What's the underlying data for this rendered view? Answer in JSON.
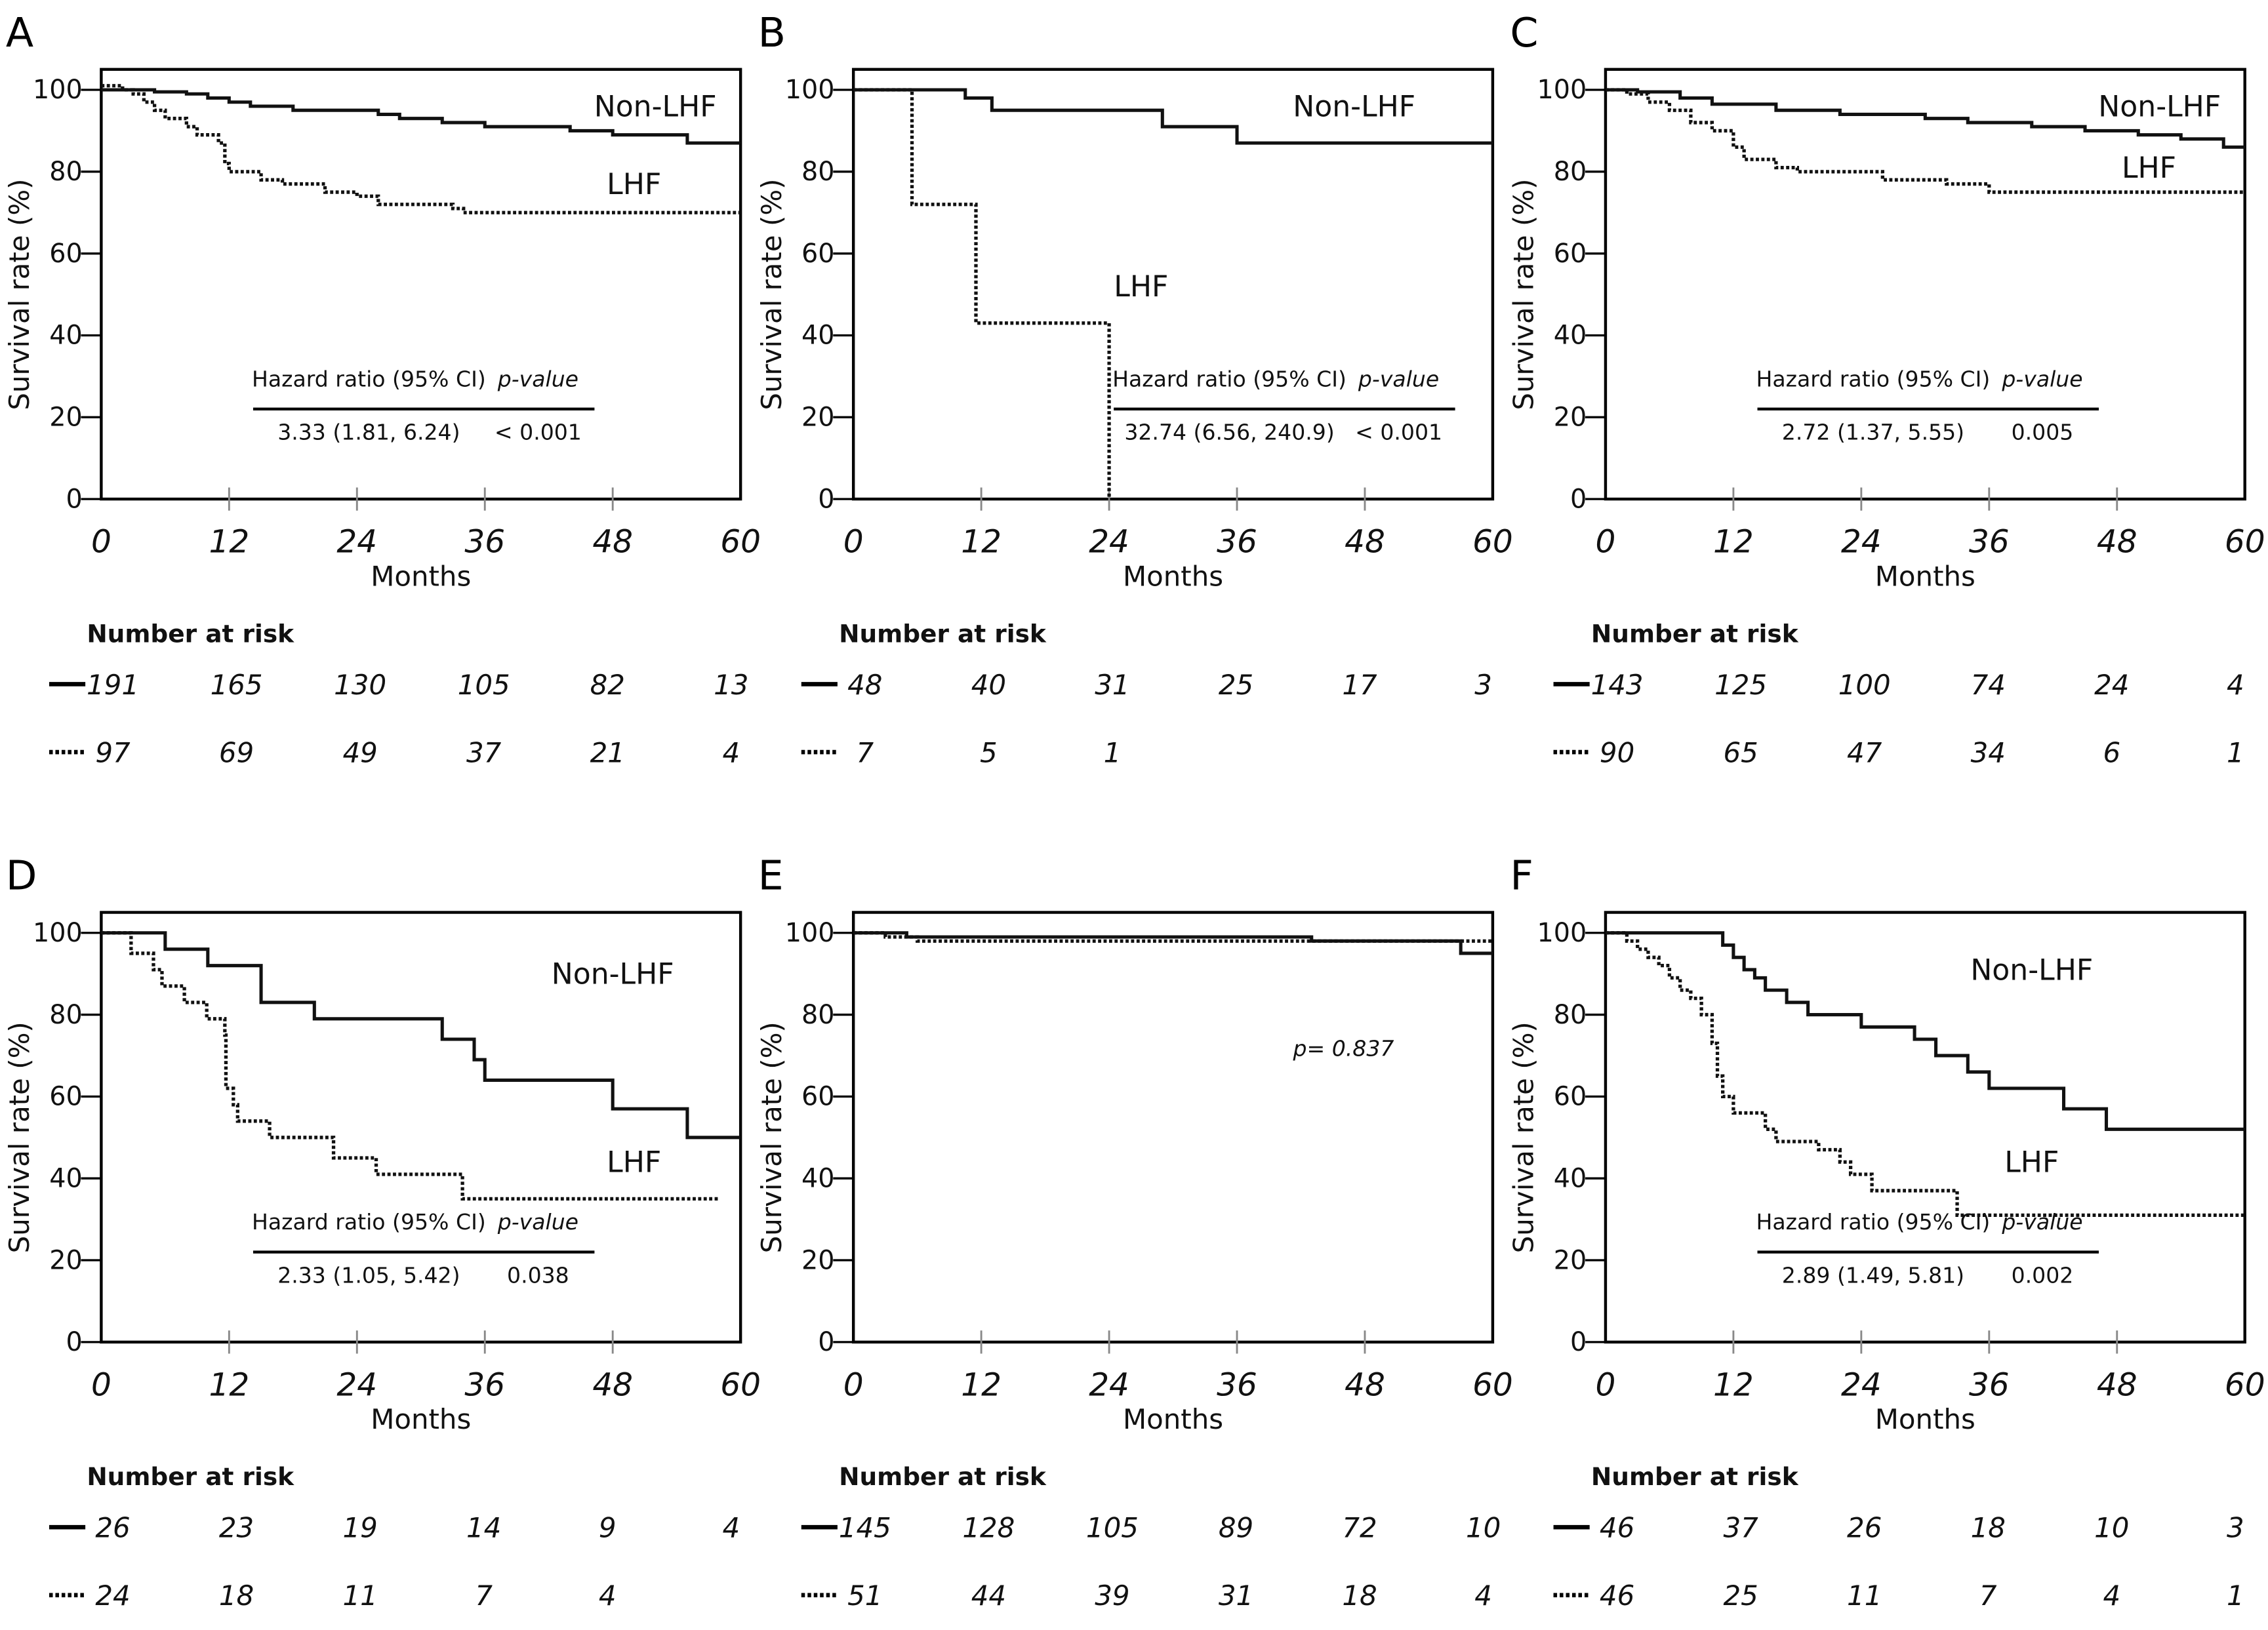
{
  "chart_data": [
    {
      "panel": "A",
      "type": "line",
      "ylabel": "Survival rate (%)",
      "xlabel": "Months",
      "xlim": [
        0,
        60
      ],
      "ylim": [
        0,
        100
      ],
      "xticks": [
        "0",
        "12",
        "24",
        "36",
        "48",
        "60"
      ],
      "yticks": [
        "0",
        "20",
        "40",
        "60",
        "80",
        "100"
      ],
      "series": [
        {
          "name": "Non-LHF",
          "style": "solid",
          "points": [
            [
              0,
              100
            ],
            [
              5,
              99.5
            ],
            [
              8,
              99
            ],
            [
              10,
              98
            ],
            [
              12,
              97
            ],
            [
              14,
              96
            ],
            [
              18,
              95
            ],
            [
              26,
              94
            ],
            [
              28,
              93
            ],
            [
              32,
              92
            ],
            [
              36,
              91
            ],
            [
              44,
              90
            ],
            [
              48,
              89
            ],
            [
              55,
              87
            ],
            [
              60,
              87
            ]
          ]
        },
        {
          "name": "LHF",
          "style": "dotted",
          "points": [
            [
              0,
              101
            ],
            [
              2,
              100
            ],
            [
              3,
              99
            ],
            [
              4,
              97
            ],
            [
              5,
              95
            ],
            [
              6,
              93
            ],
            [
              8,
              91
            ],
            [
              9,
              89
            ],
            [
              11,
              87
            ],
            [
              11.6,
              82
            ],
            [
              12,
              80
            ],
            [
              15,
              78
            ],
            [
              17,
              77
            ],
            [
              21,
              75
            ],
            [
              24,
              74
            ],
            [
              26,
              72
            ],
            [
              33,
              71
            ],
            [
              34,
              70
            ],
            [
              60,
              70
            ]
          ]
        }
      ],
      "hr_header": "Hazard ratio (95% CI)",
      "p_header": "p-value",
      "hr_value": "3.33 (1.81, 6.24)",
      "p_value": "< 0.001",
      "risk_title": "Number at risk",
      "risk": [
        [
          "191",
          "165",
          "130",
          "105",
          "82",
          "13"
        ],
        [
          "97",
          "69",
          "49",
          "37",
          "21",
          "4"
        ]
      ]
    },
    {
      "panel": "B",
      "type": "line",
      "ylabel": "Survival rate (%)",
      "xlabel": "Months",
      "xlim": [
        0,
        60
      ],
      "ylim": [
        0,
        100
      ],
      "xticks": [
        "0",
        "12",
        "24",
        "36",
        "48",
        "60"
      ],
      "yticks": [
        "0",
        "20",
        "40",
        "60",
        "80",
        "100"
      ],
      "series": [
        {
          "name": "Non-LHF",
          "style": "solid",
          "points": [
            [
              0,
              100
            ],
            [
              10.5,
              100
            ],
            [
              10.5,
              98
            ],
            [
              13,
              98
            ],
            [
              13,
              95
            ],
            [
              29,
              95
            ],
            [
              29,
              91
            ],
            [
              36,
              91
            ],
            [
              36,
              87
            ],
            [
              60,
              87
            ]
          ]
        },
        {
          "name": "LHF",
          "style": "dotted",
          "points": [
            [
              0,
              100
            ],
            [
              5.5,
              100
            ],
            [
              5.5,
              72
            ],
            [
              11,
              72
            ],
            [
              11.5,
              43
            ],
            [
              24,
              43
            ],
            [
              24,
              0
            ]
          ]
        }
      ],
      "hr_header": "Hazard ratio (95% CI)",
      "p_header": "p-value",
      "hr_value": "32.74 (6.56, 240.9)",
      "p_value": "< 0.001",
      "risk_title": "Number at risk",
      "risk": [
        [
          "48",
          "40",
          "31",
          "25",
          "17",
          "3"
        ],
        [
          "7",
          "5",
          "1",
          "",
          "",
          ""
        ]
      ]
    },
    {
      "panel": "C",
      "type": "line",
      "ylabel": "Survival rate (%)",
      "xlabel": "Months",
      "xlim": [
        0,
        60
      ],
      "ylim": [
        0,
        100
      ],
      "xticks": [
        "0",
        "12",
        "24",
        "36",
        "48",
        "60"
      ],
      "yticks": [
        "0",
        "20",
        "40",
        "60",
        "80",
        "100"
      ],
      "series": [
        {
          "name": "Non-LHF",
          "style": "solid",
          "points": [
            [
              0,
              100
            ],
            [
              3,
              99.5
            ],
            [
              7,
              98
            ],
            [
              10,
              96.5
            ],
            [
              16,
              95
            ],
            [
              22,
              94
            ],
            [
              30,
              93
            ],
            [
              34,
              92
            ],
            [
              40,
              91
            ],
            [
              45,
              90
            ],
            [
              50,
              89
            ],
            [
              54,
              88
            ],
            [
              58,
              86
            ],
            [
              60,
              86
            ]
          ]
        },
        {
          "name": "LHF",
          "style": "dotted",
          "points": [
            [
              0,
              100
            ],
            [
              2,
              99
            ],
            [
              4,
              97
            ],
            [
              6,
              95
            ],
            [
              8,
              92
            ],
            [
              10,
              90
            ],
            [
              12,
              86
            ],
            [
              13,
              83
            ],
            [
              16,
              81
            ],
            [
              18,
              80
            ],
            [
              26,
              78
            ],
            [
              32,
              77
            ],
            [
              36,
              75
            ],
            [
              60,
              75
            ]
          ]
        }
      ],
      "hr_header": "Hazard ratio (95% CI)",
      "p_header": "p-value",
      "hr_value": "2.72 (1.37, 5.55)",
      "p_value": "0.005",
      "risk_title": "Number at risk",
      "risk": [
        [
          "143",
          "125",
          "100",
          "74",
          "24",
          "4"
        ],
        [
          "90",
          "65",
          "47",
          "34",
          "6",
          "1"
        ]
      ]
    },
    {
      "panel": "D",
      "type": "line",
      "ylabel": "Survival rate (%)",
      "xlabel": "Months",
      "xlim": [
        0,
        60
      ],
      "ylim": [
        0,
        100
      ],
      "xticks": [
        "0",
        "12",
        "24",
        "36",
        "48",
        "60"
      ],
      "yticks": [
        "0",
        "20",
        "40",
        "60",
        "80",
        "100"
      ],
      "series": [
        {
          "name": "Non-LHF",
          "style": "solid",
          "points": [
            [
              0,
              100
            ],
            [
              6,
              96
            ],
            [
              10,
              92
            ],
            [
              15,
              83
            ],
            [
              20,
              79
            ],
            [
              32,
              74
            ],
            [
              35,
              69
            ],
            [
              36,
              64
            ],
            [
              48,
              57
            ],
            [
              55,
              50
            ],
            [
              60,
              50
            ]
          ]
        },
        {
          "name": "LHF",
          "style": "dotted",
          "points": [
            [
              0,
              100
            ],
            [
              2.8,
              95
            ],
            [
              4.9,
              91
            ],
            [
              5.7,
              87
            ],
            [
              7.8,
              83
            ],
            [
              9.9,
              79
            ],
            [
              11.6,
              75
            ],
            [
              11.7,
              62
            ],
            [
              12.4,
              58
            ],
            [
              12.8,
              54
            ],
            [
              15.8,
              50
            ],
            [
              21.8,
              45
            ],
            [
              25.8,
              41
            ],
            [
              33.9,
              35
            ],
            [
              57.9,
              35
            ]
          ]
        }
      ],
      "hr_header": "Hazard ratio (95% CI)",
      "p_header": "p-value",
      "hr_value": "2.33 (1.05, 5.42)",
      "p_value": "0.038",
      "risk_title": "Number at risk",
      "risk": [
        [
          "26",
          "23",
          "19",
          "14",
          "9",
          "4"
        ],
        [
          "24",
          "18",
          "11",
          "7",
          "4",
          ""
        ]
      ]
    },
    {
      "panel": "E",
      "type": "line",
      "ylabel": "Survival rate (%)",
      "xlabel": "Months",
      "xlim": [
        0,
        60
      ],
      "ylim": [
        0,
        100
      ],
      "xticks": [
        "0",
        "12",
        "24",
        "36",
        "48",
        "60"
      ],
      "yticks": [
        "0",
        "20",
        "40",
        "60",
        "80",
        "100"
      ],
      "series": [
        {
          "style": "solid",
          "points": [
            [
              0,
              100
            ],
            [
              5,
              99
            ],
            [
              43,
              98
            ],
            [
              57,
              98
            ],
            [
              57,
              95
            ],
            [
              60,
              95
            ]
          ]
        },
        {
          "style": "dotted",
          "points": [
            [
              0,
              100
            ],
            [
              3,
              99
            ],
            [
              6,
              98
            ],
            [
              60,
              98
            ]
          ]
        }
      ],
      "p_text": "p= 0.837",
      "risk_title": "Number at risk",
      "risk": [
        [
          "145",
          "128",
          "105",
          "89",
          "72",
          "10"
        ],
        [
          "51",
          "44",
          "39",
          "31",
          "18",
          "4"
        ]
      ]
    },
    {
      "panel": "F",
      "type": "line",
      "ylabel": "Survival rate (%)",
      "xlabel": "Months",
      "xlim": [
        0,
        60
      ],
      "ylim": [
        0,
        100
      ],
      "xticks": [
        "0",
        "12",
        "24",
        "36",
        "48",
        "60"
      ],
      "yticks": [
        "0",
        "20",
        "40",
        "60",
        "80",
        "100"
      ],
      "series": [
        {
          "name": "Non-LHF",
          "style": "solid",
          "points": [
            [
              0,
              100
            ],
            [
              10,
              100
            ],
            [
              11,
              97
            ],
            [
              12,
              94
            ],
            [
              13,
              91
            ],
            [
              14,
              89
            ],
            [
              15,
              86
            ],
            [
              17,
              83
            ],
            [
              19,
              80
            ],
            [
              24,
              77
            ],
            [
              29,
              74
            ],
            [
              31,
              70
            ],
            [
              34,
              66
            ],
            [
              36,
              62
            ],
            [
              43,
              57
            ],
            [
              47,
              52
            ],
            [
              60,
              52
            ]
          ]
        },
        {
          "name": "LHF",
          "style": "dotted",
          "points": [
            [
              0,
              100
            ],
            [
              2,
              98
            ],
            [
              3,
              96
            ],
            [
              4,
              94
            ],
            [
              5,
              92
            ],
            [
              6,
              89
            ],
            [
              7,
              86
            ],
            [
              8,
              84
            ],
            [
              9,
              80
            ],
            [
              10,
              73
            ],
            [
              10.5,
              65
            ],
            [
              11,
              60
            ],
            [
              12,
              56
            ],
            [
              15,
              52
            ],
            [
              16,
              49
            ],
            [
              20,
              47
            ],
            [
              22,
              44
            ],
            [
              23,
              41
            ],
            [
              25,
              37
            ],
            [
              33,
              36
            ],
            [
              33,
              31
            ],
            [
              60,
              31
            ]
          ]
        }
      ],
      "hr_header": "Hazard ratio (95% CI)",
      "p_header": "p-value",
      "hr_value": "2.89 (1.49, 5.81)",
      "p_value": "0.002",
      "risk_title": "Number at risk",
      "risk": [
        [
          "46",
          "37",
          "26",
          "18",
          "10",
          "3"
        ],
        [
          "46",
          "25",
          "11",
          "7",
          "4",
          "1"
        ]
      ]
    }
  ]
}
